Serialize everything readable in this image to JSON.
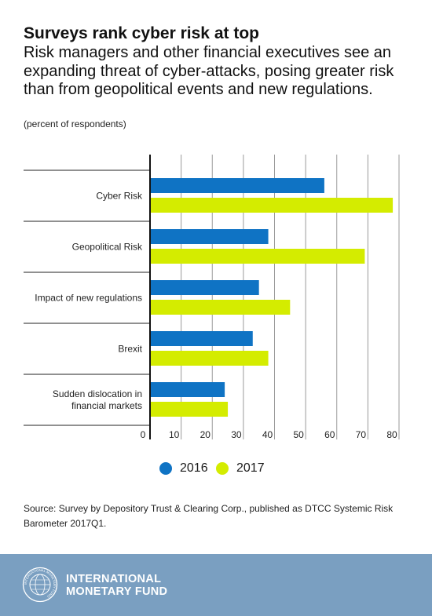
{
  "title": "Surveys rank cyber risk at top",
  "subtitle": "Risk managers and other financial executives see an expanding threat of cyber-attacks, posing greater risk than from geopolitical events and new regulations.",
  "unit_note": "(percent of respondents)",
  "source": "Source: Survey by Depository Trust & Clearing Corp., published as DTCC Systemic Risk Barometer 2017Q1.",
  "footer": {
    "logo_line1": "INTERNATIONAL",
    "logo_line2": "MONETARY FUND",
    "seal_text": "INTERNATIONAL MONETARY FUND"
  },
  "colors": {
    "series_2016": "#0f73c4",
    "series_2017": "#d4ec00",
    "footer_bg": "#7a9fc1"
  },
  "chart_data": {
    "type": "bar",
    "orientation": "horizontal",
    "categories": [
      [
        "Cyber Risk"
      ],
      [
        "Geopolitical Risk"
      ],
      [
        "Impact of new regulations"
      ],
      [
        "Brexit"
      ],
      [
        "Sudden dislocation in",
        "financial markets"
      ]
    ],
    "series": [
      {
        "name": "2016",
        "values": [
          56,
          38,
          35,
          33,
          24
        ]
      },
      {
        "name": "2017",
        "values": [
          78,
          69,
          45,
          38,
          25
        ]
      }
    ],
    "xlim": [
      0,
      80
    ],
    "xticks": [
      0,
      10,
      20,
      30,
      40,
      50,
      60,
      70,
      80
    ],
    "grid": true,
    "legend": "bottom"
  }
}
